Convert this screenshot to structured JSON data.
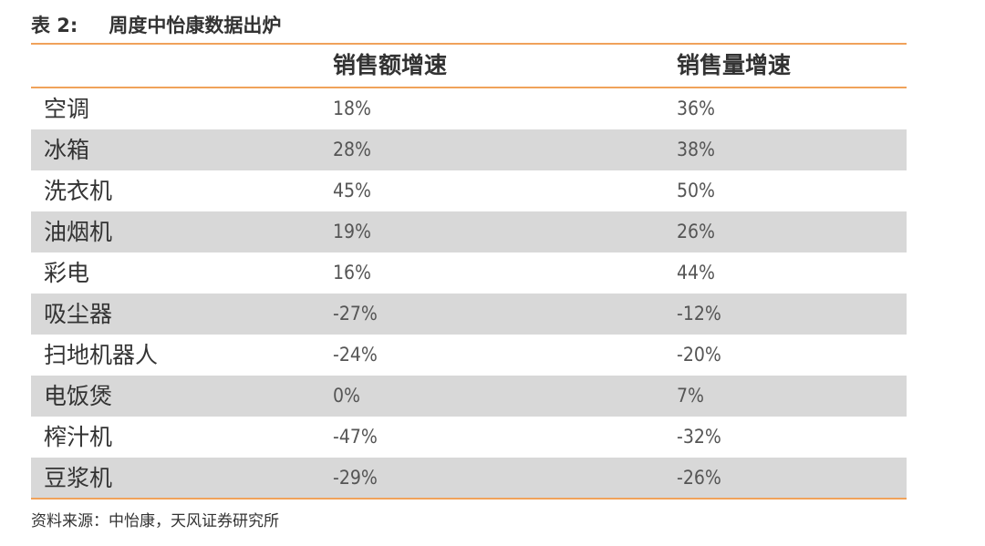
{
  "caption": {
    "number": "表 2:",
    "title": "周度中怡康数据出炉"
  },
  "table": {
    "headers": [
      "",
      "销售额增速",
      "销售量增速"
    ],
    "rows": [
      {
        "name": "空调",
        "sales_value_growth": "18%",
        "sales_volume_growth": "36%"
      },
      {
        "name": "冰箱",
        "sales_value_growth": "28%",
        "sales_volume_growth": "38%"
      },
      {
        "name": "洗衣机",
        "sales_value_growth": "45%",
        "sales_volume_growth": "50%"
      },
      {
        "name": "油烟机",
        "sales_value_growth": "19%",
        "sales_volume_growth": "26%"
      },
      {
        "name": "彩电",
        "sales_value_growth": "16%",
        "sales_volume_growth": "44%"
      },
      {
        "name": "吸尘器",
        "sales_value_growth": "-27%",
        "sales_volume_growth": "-12%"
      },
      {
        "name": "扫地机器人",
        "sales_value_growth": "-24%",
        "sales_volume_growth": "-20%"
      },
      {
        "name": "电饭煲",
        "sales_value_growth": "0%",
        "sales_volume_growth": "7%"
      },
      {
        "name": "榨汁机",
        "sales_value_growth": "-47%",
        "sales_volume_growth": "-32%"
      },
      {
        "name": "豆浆机",
        "sales_value_growth": "-29%",
        "sales_volume_growth": "-26%"
      }
    ]
  },
  "source": "资料来源：中怡康，天风证券研究所",
  "colors": {
    "rule": "#f0a25a",
    "shade": "#d8d8d8"
  }
}
